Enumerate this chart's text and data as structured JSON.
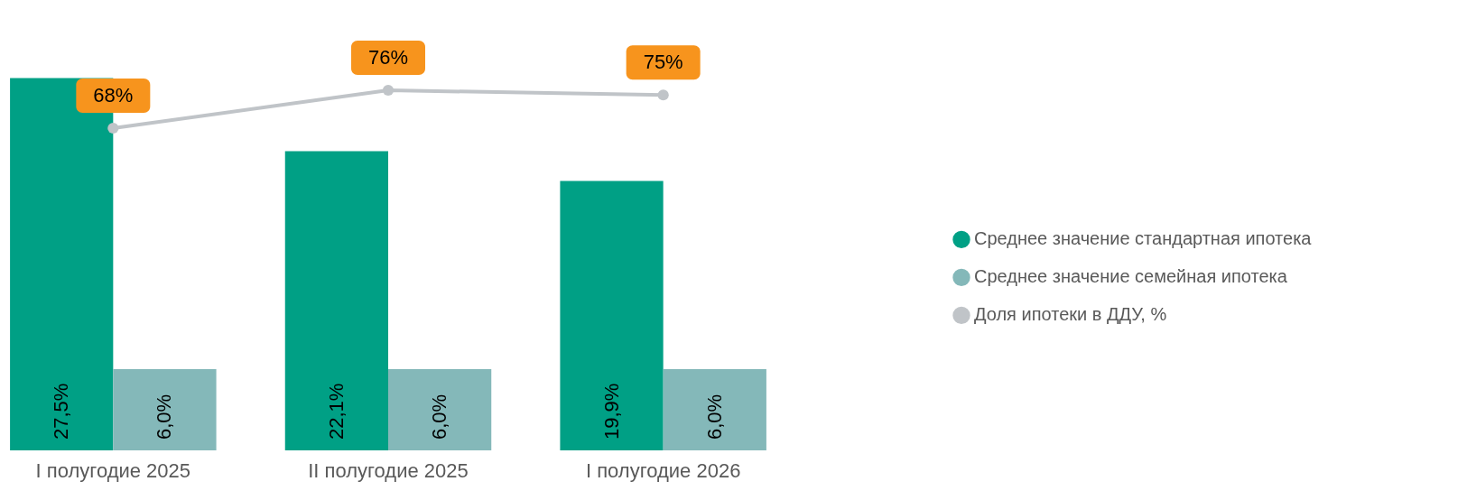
{
  "chart_data": {
    "type": "bar",
    "categories": [
      "I полугодие 2025",
      "II полугодие 2025",
      "I полугодие 2026"
    ],
    "series": [
      {
        "name": "Среднее значение стандартная ипотека",
        "color": "#00a085",
        "values": [
          27.5,
          22.1,
          19.9
        ],
        "value_labels": [
          "27,5%",
          "22,1%",
          "19,9%"
        ]
      },
      {
        "name": "Среднее значение семейная ипотека",
        "color": "#84b8b9",
        "values": [
          6.0,
          6.0,
          6.0
        ],
        "value_labels": [
          "6,0%",
          "6,0%",
          "6,0%"
        ]
      },
      {
        "name": "Доля ипотеки в ДДУ, %",
        "color": "#c0c4c8",
        "type": "line",
        "axis": "y2",
        "values": [
          68,
          76,
          75
        ],
        "value_labels": [
          "68%",
          "76%",
          "75%"
        ]
      }
    ],
    "tick_labels": "x",
    "legend": "right",
    "marker": "circle"
  }
}
